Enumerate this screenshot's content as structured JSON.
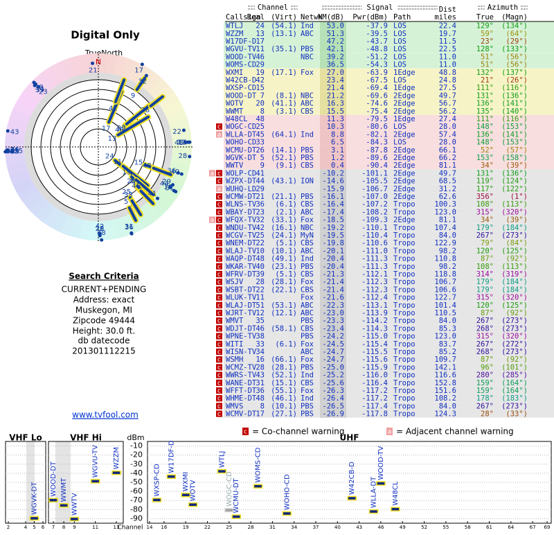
{
  "left": {
    "title": "Digital Only",
    "north_label": "TrueNorth",
    "north": "N",
    "criteria_title": "Search Criteria",
    "criteria": [
      "CURRENT+PENDING",
      "Address: exact",
      "Muskegon, MI",
      "Zipcode 49444",
      "Height: 30.0 ft."
    ],
    "datecode_label": "db datecode",
    "datecode": "201301112215",
    "link": "www.tvfool.com"
  },
  "table": {
    "groups": [
      "Channel",
      "Signal",
      "Azimuth"
    ],
    "columns": [
      "Callsign",
      "Real",
      "(Virt)",
      "Netwk",
      "NM(dB)",
      "Pwr(dBm)",
      "Path",
      "Dist",
      "True",
      "(Magn)"
    ],
    "dist_unit": "miles",
    "row_colors": {
      "green": [
        "#d6f2d6",
        "#b6e0b6"
      ],
      "yellow": [
        "#f6f4c6",
        "#e6e0a0"
      ],
      "pink": [
        "#f8dede",
        "#efc4c4"
      ],
      "gray": [
        "#e6e6e6",
        "#d0d0d0"
      ]
    },
    "flag_colors": {
      "c": "#c00000",
      "a": "#f0a0a0"
    },
    "rows": [
      {
        "cells": [
          "WTLJ",
          24,
          "(54.1)",
          "Ind",
          "53.0",
          "-37.9",
          "LOS",
          "22.4",
          "129°",
          "(134°)"
        ],
        "bg": "green"
      },
      {
        "cells": [
          "WZZM",
          13,
          "(13.1)",
          "ABC",
          "51.3",
          "-39.5",
          "LOS",
          "19.7",
          "59°",
          "(64°)"
        ],
        "bg": "green"
      },
      {
        "cells": [
          "W17DF-D",
          17,
          null,
          null,
          "47.2",
          "-43.7",
          "LOS",
          "11.5",
          "23°",
          "(29°)"
        ],
        "bg": "green"
      },
      {
        "cells": [
          "WGVU-TV",
          11,
          "(35.1)",
          "PBS",
          "42.1",
          "-48.8",
          "LOS",
          "22.5",
          "128°",
          "(133°)"
        ],
        "bg": "green"
      },
      {
        "cells": [
          "WOOD-TV",
          46,
          null,
          "NBC",
          "39.2",
          "-51.2",
          "LOS",
          "11.0",
          "51°",
          "(56°)"
        ],
        "bg": "green"
      },
      {
        "cells": [
          "WOMS-CD",
          29,
          null,
          null,
          "36.5",
          "-54.3",
          "LOS",
          "11.0",
          "51°",
          "(56°)"
        ],
        "bg": "green"
      },
      {
        "cells": [
          "WXMI",
          19,
          "(17.1)",
          "Fox",
          "27.0",
          "-63.9",
          "1Edge",
          "48.8",
          "132°",
          "(137°)"
        ],
        "bg": "yellow"
      },
      {
        "cells": [
          "W42CB-D",
          42,
          null,
          null,
          "23.4",
          "-67.5",
          "LOS",
          "24.8",
          "21°",
          "(26°)"
        ],
        "bg": "yellow"
      },
      {
        "cells": [
          "WXSP-CD",
          15,
          null,
          null,
          "21.4",
          "-69.4",
          "1Edge",
          "27.5",
          "111°",
          "(116°)"
        ],
        "bg": "yellow"
      },
      {
        "cells": [
          "WOOD-DT",
          7,
          "(8.1)",
          "NBC",
          "21.2",
          "-69.6",
          "2Edge",
          "49.7",
          "131°",
          "(136°)"
        ],
        "bg": "yellow"
      },
      {
        "cells": [
          "WOTV",
          20,
          "(41.1)",
          "ABC",
          "16.3",
          "-74.6",
          "2Edge",
          "56.7",
          "136°",
          "(141°)"
        ],
        "bg": "yellow"
      },
      {
        "cells": [
          "WWMT",
          8,
          "(3.1)",
          "CBS",
          "15.5",
          "-75.4",
          "2Edge",
          "56.2",
          "135°",
          "(140°)"
        ],
        "bg": "yellow"
      },
      {
        "cells": [
          "W48CL",
          48,
          null,
          null,
          "11.3",
          "-79.5",
          "1Edge",
          "27.4",
          "111°",
          "(116°)"
        ],
        "bg": "pink"
      },
      {
        "cells": [
          "WOGC-CD",
          25,
          null,
          null,
          "10.3",
          "-80.6",
          "LOS",
          "28.0",
          "148°",
          "(153°)"
        ],
        "bg": "pink",
        "flags": [
          "c"
        ]
      },
      {
        "cells": [
          "WLLA-DT",
          45,
          "(64.1)",
          "Ind",
          "8.8",
          "-82.1",
          "2Edge",
          "57.4",
          "136°",
          "(141°)"
        ],
        "bg": "pink",
        "flags": [
          "a"
        ]
      },
      {
        "cells": [
          "WOHO-CD",
          33,
          null,
          null,
          "6.5",
          "-84.3",
          "LOS",
          "28.0",
          "148°",
          "(153°)"
        ],
        "bg": "pink"
      },
      {
        "cells": [
          "WCMU-DT",
          26,
          "(14.1)",
          "PBS",
          "3.1",
          "-87.8",
          "2Edge",
          "66.1",
          "52°",
          "(57°)"
        ],
        "bg": "pink"
      },
      {
        "cells": [
          "WGVK-DT",
          5,
          "(52.1)",
          "PBS",
          "1.2",
          "-89.6",
          "2Edge",
          "66.2",
          "153°",
          "(158°)"
        ],
        "bg": "pink"
      },
      {
        "cells": [
          "WWTV",
          9,
          "(9.1)",
          "CBS",
          "0.4",
          "-90.4",
          "2Edge",
          "81.1",
          "34°",
          "(39°)"
        ],
        "bg": "pink"
      },
      {
        "cells": [
          "WOLP-CD",
          41,
          null,
          null,
          "-10.2",
          "-101.1",
          "2Edge",
          "49.7",
          "131°",
          "(136°)"
        ],
        "bg": "gray",
        "flags": [
          "a",
          "c"
        ]
      },
      {
        "cells": [
          "WZPX-DT",
          44,
          "(43.1)",
          "ION",
          "-14.6",
          "-105.5",
          "2Edge",
          "68.5",
          "119°",
          "(124°)"
        ],
        "bg": "gray",
        "flags": [
          "c"
        ]
      },
      {
        "cells": [
          "WUHQ-LD",
          29,
          null,
          null,
          "-15.9",
          "-106.7",
          "2Edge",
          "31.2",
          "117°",
          "(122°)"
        ],
        "bg": "gray",
        "flags": [
          "a"
        ]
      },
      {
        "cells": [
          "WCMW-DT",
          21,
          "(21.1)",
          "PBS",
          "-16.1",
          "-107.0",
          "2Edge",
          "62.6",
          "356°",
          "(1°)"
        ],
        "bg": "gray",
        "flags": [
          "c"
        ]
      },
      {
        "cells": [
          "WLNS-TV",
          36,
          "(6.1)",
          "CBS",
          "-16.4",
          "-107.2",
          "Tropo",
          "100.3",
          "108°",
          "(113°)"
        ],
        "bg": "gray",
        "flags": [
          "c"
        ]
      },
      {
        "cells": [
          "WBAY-DT",
          23,
          "(2.1)",
          "ABC",
          "-17.4",
          "-108.2",
          "Tropo",
          "123.0",
          "315°",
          "(320°)"
        ],
        "bg": "gray",
        "flags": [
          "c"
        ]
      },
      {
        "cells": [
          "WFQX-TV",
          32,
          "(33.1)",
          "Fox",
          "-18.5",
          "-109.3",
          "2Edge",
          "81.1",
          "34°",
          "(39°)"
        ],
        "bg": "gray",
        "flags": [
          "a",
          "c"
        ]
      },
      {
        "cells": [
          "WNDU-TV",
          42,
          "(16.1)",
          "NBC",
          "-19.2",
          "-110.1",
          "Tropo",
          "107.4",
          "179°",
          "(184°)"
        ],
        "bg": "gray",
        "flags": [
          "c"
        ]
      },
      {
        "cells": [
          "WCGV-TV",
          25,
          "(24.1)",
          "MyN",
          "-19.5",
          "-110.4",
          "Tropo",
          "84.0",
          "267°",
          "(273°)"
        ],
        "bg": "gray",
        "flags": [
          "c"
        ]
      },
      {
        "cells": [
          "WNEM-DT",
          22,
          "(5.1)",
          "CBS",
          "-19.8",
          "-110.6",
          "Tropo",
          "122.9",
          "79°",
          "(84°)"
        ],
        "bg": "gray",
        "flags": [
          "c"
        ]
      },
      {
        "cells": [
          "WLAJ-TV",
          10,
          "(10.1)",
          "ABC",
          "-20.1",
          "-111.0",
          "Tropo",
          "98.2",
          "120°",
          "(125°)"
        ],
        "bg": "gray",
        "flags": [
          "c"
        ]
      },
      {
        "cells": [
          "WAQP-DT",
          48,
          "(49.1)",
          "Ind",
          "-20.4",
          "-111.3",
          "Tropo",
          "110.8",
          "87°",
          "(92°)"
        ],
        "bg": "gray",
        "flags": [
          "c"
        ]
      },
      {
        "cells": [
          "WKAR-TV",
          40,
          "(23.1)",
          "PBS",
          "-20.4",
          "-111.3",
          "Tropo",
          "98.2",
          "108°",
          "(113°)"
        ],
        "bg": "gray",
        "flags": [
          "c"
        ]
      },
      {
        "cells": [
          "WFRV-DT",
          39,
          "(5.1)",
          "CBS",
          "-21.3",
          "-112.1",
          "Tropo",
          "118.8",
          "314°",
          "(319°)"
        ],
        "bg": "gray",
        "flags": [
          "c"
        ]
      },
      {
        "cells": [
          "WSJV",
          28,
          "(28.1)",
          "Fox",
          "-21.4",
          "-112.3",
          "Tropo",
          "106.7",
          "179°",
          "(184°)"
        ],
        "bg": "gray",
        "flags": [
          "c"
        ]
      },
      {
        "cells": [
          "WSBT-DT",
          22,
          "(22.1)",
          "CBS",
          "-21.4",
          "-112.3",
          "Tropo",
          "106.6",
          "179°",
          "(184°)"
        ],
        "bg": "gray",
        "flags": [
          "c"
        ]
      },
      {
        "cells": [
          "WLUK-TV",
          11,
          null,
          "Fox",
          "-21.6",
          "-112.4",
          "Tropo",
          "122.7",
          "315°",
          "(320°)"
        ],
        "bg": "gray",
        "flags": [
          "c"
        ]
      },
      {
        "cells": [
          "WLAJ-DT",
          51,
          "(53.1)",
          "ABC",
          "-22.3",
          "-113.1",
          "Tropo",
          "101.4",
          "120°",
          "(125°)"
        ],
        "bg": "gray",
        "flags": [
          "c"
        ]
      },
      {
        "cells": [
          "WJRT-TV",
          12,
          "(12.1)",
          "ABC",
          "-23.0",
          "-113.9",
          "Tropo",
          "110.5",
          "87°",
          "(92°)"
        ],
        "bg": "gray",
        "flags": [
          "c"
        ]
      },
      {
        "cells": [
          "WMVT",
          35,
          null,
          "PBS",
          "-23.3",
          "-114.2",
          "Tropo",
          "84.0",
          "267°",
          "(273°)"
        ],
        "bg": "gray",
        "flags": [
          "c"
        ]
      },
      {
        "cells": [
          "WDJT-DT",
          46,
          "(58.1)",
          "CBS",
          "-23.4",
          "-114.3",
          "Tropo",
          "85.3",
          "268°",
          "(273°)"
        ],
        "bg": "gray",
        "flags": [
          "c"
        ]
      },
      {
        "cells": [
          "WPNE-TV",
          38,
          null,
          "PBS",
          "-24.2",
          "-115.0",
          "Tropo",
          "123.0",
          "315°",
          "(320°)"
        ],
        "bg": "gray",
        "flags": [
          "c"
        ]
      },
      {
        "cells": [
          "WITI",
          33,
          "(6.1)",
          "Fox",
          "-24.5",
          "-115.4",
          "Tropo",
          "83.7",
          "267°",
          "(272°)"
        ],
        "bg": "gray",
        "flags": [
          "c"
        ]
      },
      {
        "cells": [
          "WISN-TV",
          34,
          null,
          "ABC",
          "-24.7",
          "-115.5",
          "Tropo",
          "85.2",
          "268°",
          "(273°)"
        ],
        "bg": "gray",
        "flags": [
          "c"
        ]
      },
      {
        "cells": [
          "WSMH",
          16,
          "(66.1)",
          "Fox",
          "-24.7",
          "-115.6",
          "Tropo",
          "109.7",
          "87°",
          "(92°)"
        ],
        "bg": "gray",
        "flags": [
          "c"
        ]
      },
      {
        "cells": [
          "WCMZ-TV",
          28,
          "(28.1)",
          "PBS",
          "-25.0",
          "-115.9",
          "Tropo",
          "142.1",
          "96°",
          "(101°)"
        ],
        "bg": "gray",
        "flags": [
          "c"
        ]
      },
      {
        "cells": [
          "WWRS-TV",
          43,
          "(52.1)",
          "Ind",
          "-25.2",
          "-116.0",
          "Tropo",
          "116.6",
          "280°",
          "(285°)"
        ],
        "bg": "gray",
        "flags": [
          "c"
        ]
      },
      {
        "cells": [
          "WANE-DT",
          31,
          "(15.1)",
          "CBS",
          "-25.6",
          "-116.4",
          "Tropo",
          "152.8",
          "159°",
          "(164°)"
        ],
        "bg": "gray",
        "flags": [
          "c"
        ]
      },
      {
        "cells": [
          "WFFT-DT",
          36,
          "(55.1)",
          "Fox",
          "-26.3",
          "-117.2",
          "Tropo",
          "151.6",
          "159°",
          "(164°)"
        ],
        "bg": "gray",
        "flags": [
          "c"
        ]
      },
      {
        "cells": [
          "WHME-DT",
          48,
          "(46.1)",
          "Ind",
          "-26.4",
          "-117.2",
          "Tropo",
          "108.2",
          "178°",
          "(183°)"
        ],
        "bg": "gray",
        "flags": [
          "c"
        ]
      },
      {
        "cells": [
          "WMVS",
          8,
          "(10.1)",
          "PBS",
          "-26.5",
          "-117.4",
          "Tropo",
          "84.0",
          "267°",
          "(273°)"
        ],
        "bg": "gray",
        "flags": [
          "c"
        ]
      },
      {
        "cells": [
          "WCMV-DT",
          17,
          "(27.1)",
          "PBS",
          "-26.9",
          "-117.8",
          "Tropo",
          "124.3",
          "28°",
          "(33°)"
        ],
        "bg": "gray",
        "flags": [
          "c"
        ]
      }
    ]
  },
  "legend": {
    "c": "c",
    "c_text": "= Co-channel warning",
    "a": "a",
    "a_text": "= Adjacent channel warning"
  },
  "spectrum": {
    "y_label": "dBm",
    "x_label": "Channel",
    "ylim": [
      -5,
      -95
    ],
    "yticks": [
      -10,
      -20,
      -30,
      -40,
      -50,
      -60,
      -70,
      -80,
      -90
    ],
    "bands": [
      {
        "name": "VHF Lo",
        "xlim": [
          2,
          6
        ],
        "xticks": [
          2,
          4,
          5,
          6
        ]
      },
      {
        "name": "VHF Hi",
        "xlim": [
          7,
          13
        ],
        "xticks": [
          7,
          8,
          9,
          11,
          13
        ]
      },
      {
        "name": "UHF",
        "xlim": [
          14,
          69
        ],
        "xticks": [
          14,
          16,
          19,
          22,
          25,
          28,
          31,
          34,
          37,
          40,
          43,
          46,
          49,
          52,
          55,
          58,
          61,
          64,
          67,
          69
        ]
      }
    ]
  }
}
